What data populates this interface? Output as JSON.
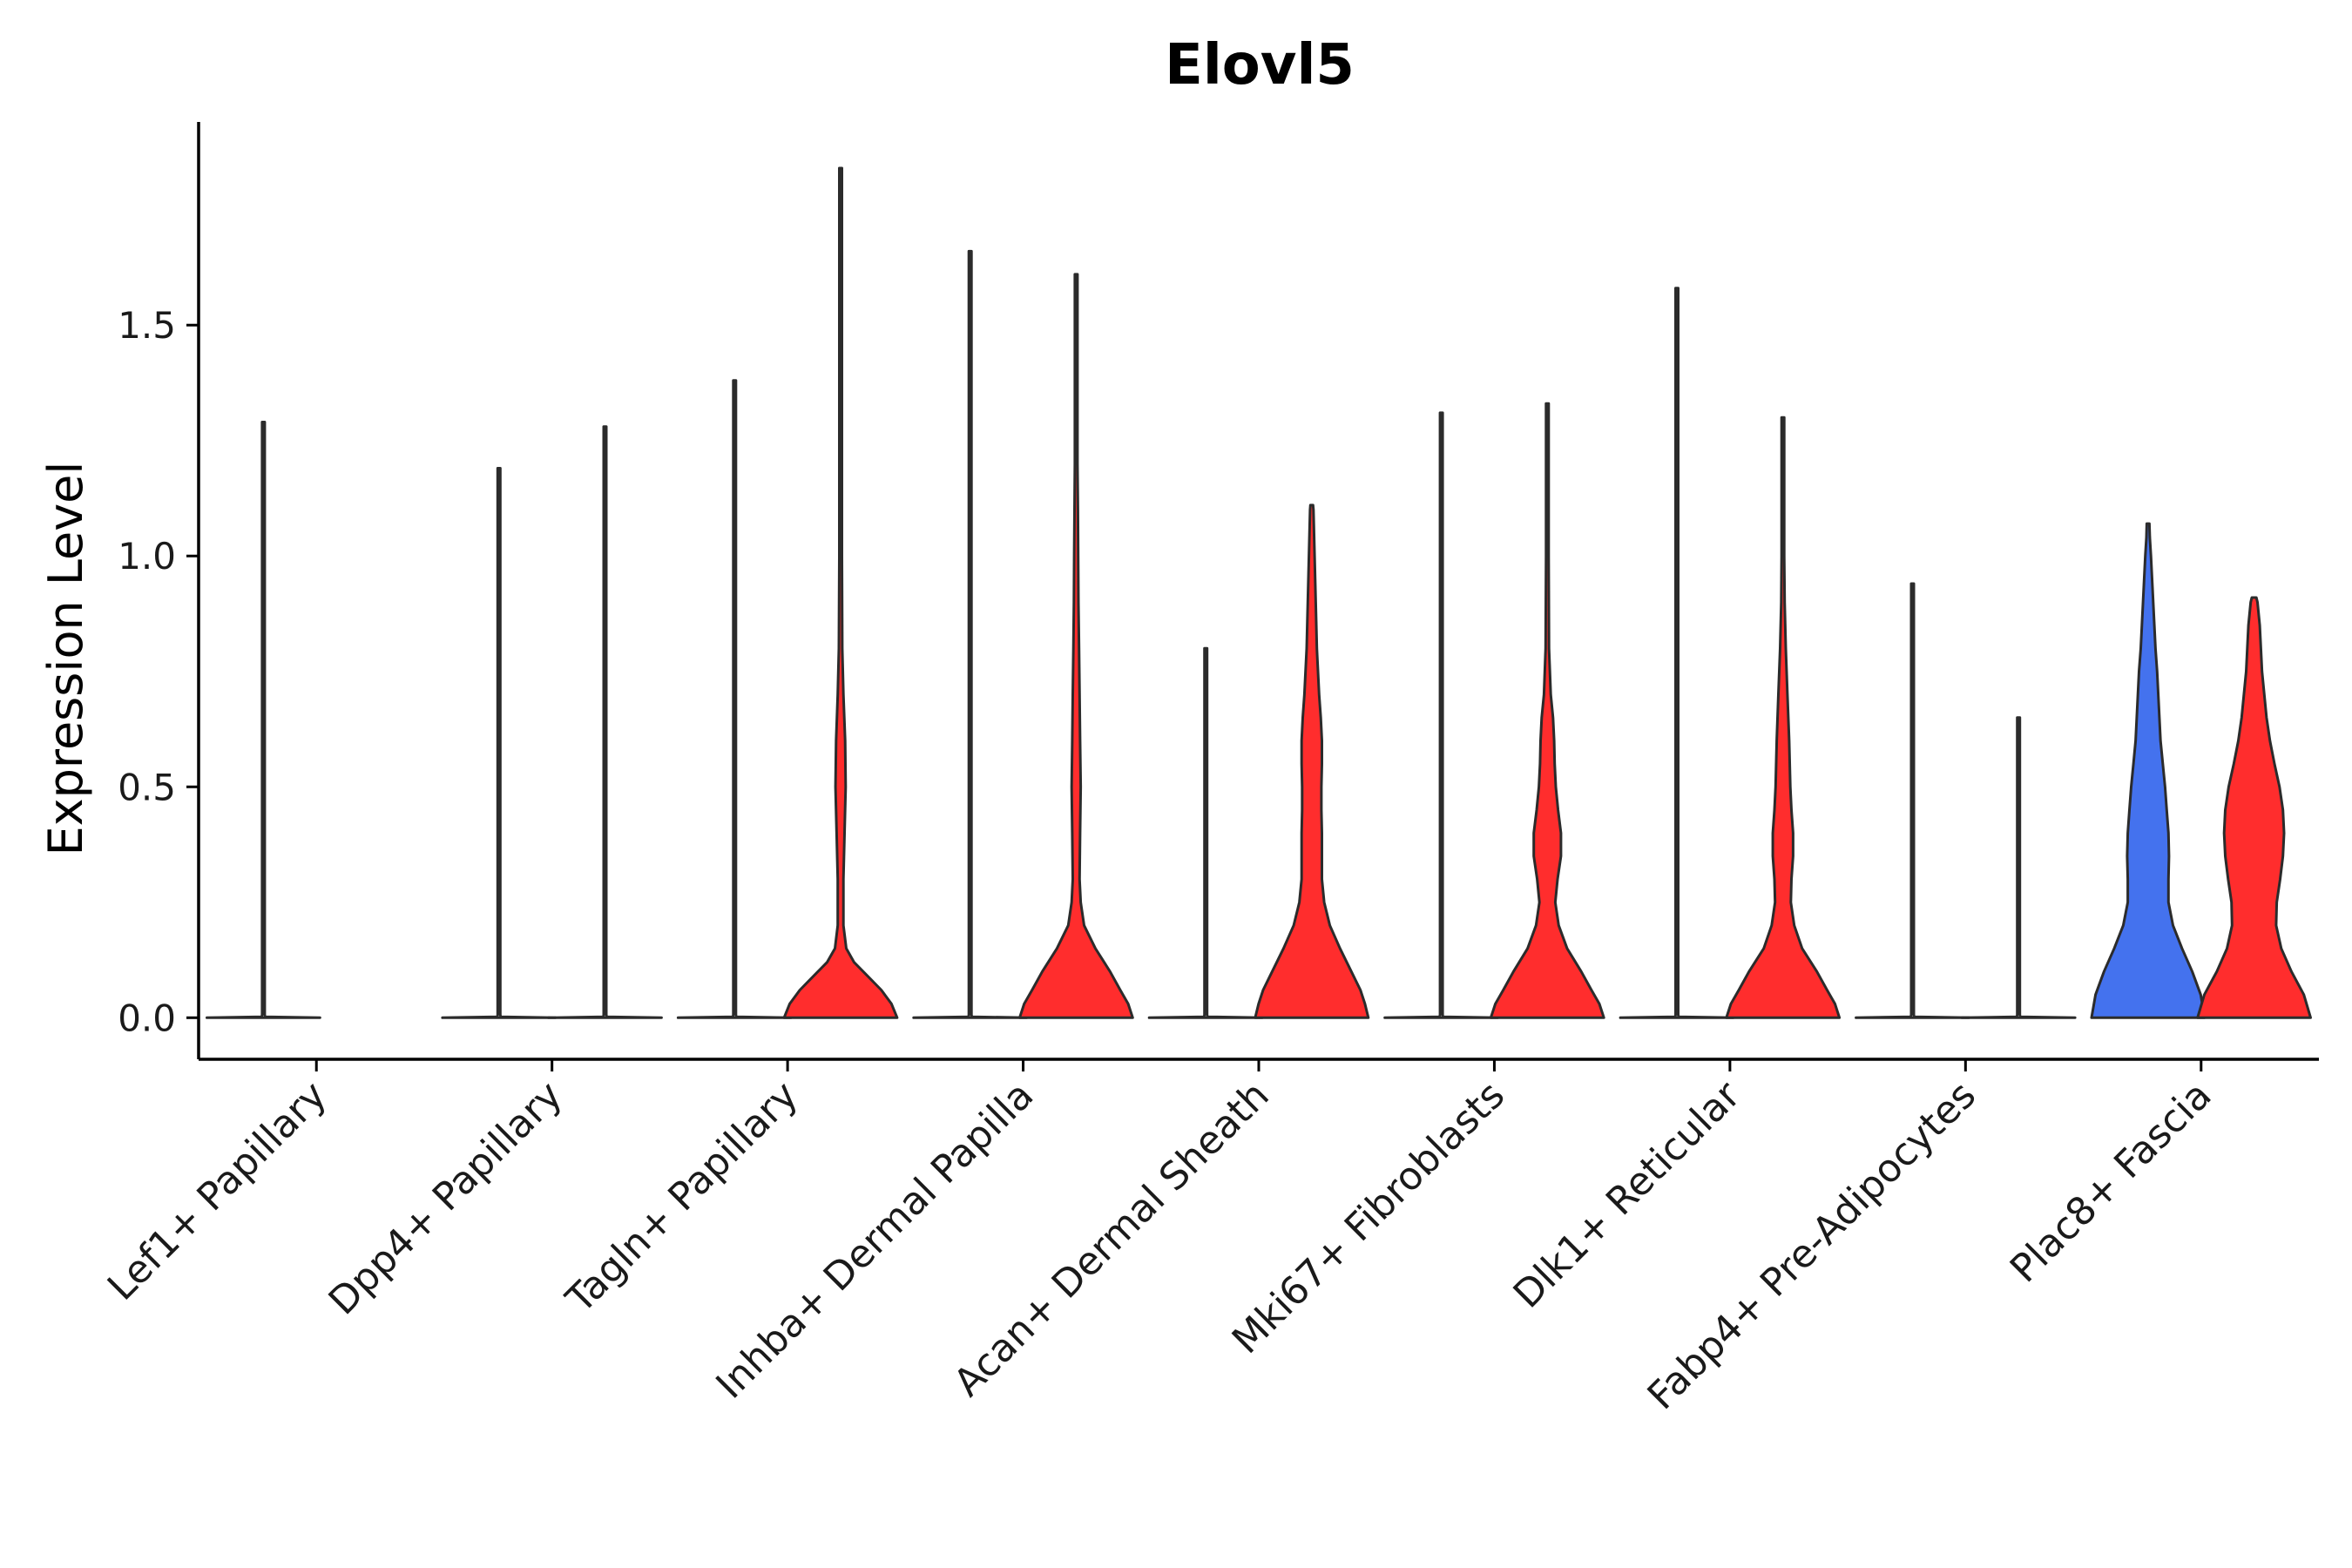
{
  "chart_data": {
    "type": "violin",
    "title": "Elovl5",
    "xlabel": "",
    "ylabel": "Expression Level",
    "ylim": [
      -0.09,
      1.94
    ],
    "yticks": [
      0.0,
      0.5,
      1.0,
      1.5
    ],
    "ytick_labels": [
      "0.0",
      "0.5",
      "1.0",
      "1.5"
    ],
    "grid": false,
    "legend": "none",
    "colors": {
      "blue": "#4472ee",
      "red": "#ff2d2d",
      "outline": "#2b2b2b"
    },
    "categories": [
      "Lef1+ Papillary",
      "Dpp4+ Papillary",
      "Tagln+ Papillary",
      "Inhba+ Dermal Papilla",
      "Acan+ Dermal Sheath",
      "Mki67+ Fibroblasts",
      "Dlk1+ Reticular",
      "Fabp4+ Pre-Adipocytes",
      "Plac8+ Fascia"
    ],
    "series": [
      {
        "name": "left group",
        "violins": [
          {
            "category": "Lef1+ Papillary",
            "max": 1.29,
            "color": "#ffffff",
            "profile": [
              [
                0,
                1.0
              ],
              [
                0.002,
                0.03
              ],
              [
                0.006,
                0.006
              ],
              [
                0.02,
                0.003
              ],
              [
                1.29,
                0.003
              ]
            ]
          },
          {
            "category": "Dpp4+ Papillary",
            "max": 1.19,
            "color": "#ffffff",
            "profile": [
              [
                0,
                1.0
              ],
              [
                0.002,
                0.03
              ],
              [
                0.006,
                0.006
              ],
              [
                0.02,
                0.003
              ],
              [
                1.19,
                0.003
              ]
            ]
          },
          {
            "category": "Tagln+ Papillary",
            "max": 1.38,
            "color": "#ffffff",
            "profile": [
              [
                0,
                1.0
              ],
              [
                0.002,
                0.03
              ],
              [
                0.006,
                0.006
              ],
              [
                0.02,
                0.003
              ],
              [
                1.38,
                0.003
              ]
            ]
          },
          {
            "category": "Inhba+ Dermal Papilla",
            "max": 1.66,
            "color": "#ffffff",
            "profile": [
              [
                0,
                1.0
              ],
              [
                0.002,
                0.03
              ],
              [
                0.006,
                0.006
              ],
              [
                0.02,
                0.003
              ],
              [
                1.66,
                0.003
              ]
            ]
          },
          {
            "category": "Acan+ Dermal Sheath",
            "max": 0.8,
            "color": "#ffffff",
            "profile": [
              [
                0,
                1.0
              ],
              [
                0.002,
                0.03
              ],
              [
                0.006,
                0.006
              ],
              [
                0.02,
                0.003
              ],
              [
                0.8,
                0.003
              ]
            ]
          },
          {
            "category": "Mki67+ Fibroblasts",
            "max": 1.31,
            "color": "#ffffff",
            "profile": [
              [
                0,
                1.0
              ],
              [
                0.002,
                0.03
              ],
              [
                0.006,
                0.006
              ],
              [
                0.02,
                0.003
              ],
              [
                1.31,
                0.003
              ]
            ]
          },
          {
            "category": "Dlk1+ Reticular",
            "max": 1.58,
            "color": "#ffffff",
            "profile": [
              [
                0,
                1.0
              ],
              [
                0.002,
                0.03
              ],
              [
                0.006,
                0.006
              ],
              [
                0.02,
                0.003
              ],
              [
                1.58,
                0.003
              ]
            ]
          },
          {
            "category": "Fabp4+ Pre-Adipocytes",
            "max": 0.94,
            "color": "#ffffff",
            "profile": [
              [
                0,
                1.0
              ],
              [
                0.002,
                0.03
              ],
              [
                0.006,
                0.006
              ],
              [
                0.02,
                0.003
              ],
              [
                0.94,
                0.003
              ]
            ]
          },
          {
            "category": "Plac8+ Fascia",
            "max": 1.07,
            "color": "#4472ee",
            "profile": [
              [
                0,
                1.0
              ],
              [
                0.05,
                0.93
              ],
              [
                0.1,
                0.78
              ],
              [
                0.15,
                0.6
              ],
              [
                0.2,
                0.44
              ],
              [
                0.25,
                0.36
              ],
              [
                0.3,
                0.36
              ],
              [
                0.35,
                0.37
              ],
              [
                0.4,
                0.36
              ],
              [
                0.45,
                0.33
              ],
              [
                0.5,
                0.3
              ],
              [
                0.55,
                0.26
              ],
              [
                0.6,
                0.22
              ],
              [
                0.65,
                0.2
              ],
              [
                0.7,
                0.18
              ],
              [
                0.75,
                0.16
              ],
              [
                0.8,
                0.13
              ],
              [
                0.85,
                0.11
              ],
              [
                0.9,
                0.09
              ],
              [
                0.95,
                0.07
              ],
              [
                1.0,
                0.05
              ],
              [
                1.04,
                0.03
              ],
              [
                1.07,
                0.005
              ]
            ]
          }
        ]
      },
      {
        "name": "right group",
        "violins": [
          {
            "category": "Lef1+ Papillary",
            "max": 0.0,
            "color": "#ffffff",
            "profile": []
          },
          {
            "category": "Dpp4+ Papillary",
            "max": 1.28,
            "color": "#ffffff",
            "profile": [
              [
                0,
                1.0
              ],
              [
                0.002,
                0.03
              ],
              [
                0.006,
                0.006
              ],
              [
                0.02,
                0.003
              ],
              [
                1.28,
                0.003
              ]
            ]
          },
          {
            "category": "Tagln+ Papillary",
            "max": 1.84,
            "color": "#ff2d2d",
            "profile": [
              [
                0,
                1.0
              ],
              [
                0.03,
                0.9
              ],
              [
                0.06,
                0.72
              ],
              [
                0.09,
                0.48
              ],
              [
                0.12,
                0.24
              ],
              [
                0.15,
                0.1
              ],
              [
                0.2,
                0.05
              ],
              [
                0.3,
                0.05
              ],
              [
                0.4,
                0.07
              ],
              [
                0.5,
                0.09
              ],
              [
                0.6,
                0.08
              ],
              [
                0.7,
                0.05
              ],
              [
                0.8,
                0.03
              ],
              [
                1.0,
                0.012
              ],
              [
                1.3,
                0.006
              ],
              [
                1.84,
                0.003
              ]
            ]
          },
          {
            "category": "Inhba+ Dermal Papilla",
            "max": 1.61,
            "color": "#ff2d2d",
            "profile": [
              [
                0,
                1.0
              ],
              [
                0.03,
                0.92
              ],
              [
                0.06,
                0.78
              ],
              [
                0.1,
                0.6
              ],
              [
                0.15,
                0.34
              ],
              [
                0.2,
                0.14
              ],
              [
                0.25,
                0.08
              ],
              [
                0.3,
                0.06
              ],
              [
                0.4,
                0.07
              ],
              [
                0.5,
                0.08
              ],
              [
                0.6,
                0.07
              ],
              [
                0.7,
                0.06
              ],
              [
                0.8,
                0.05
              ],
              [
                0.9,
                0.04
              ],
              [
                1.0,
                0.035
              ],
              [
                1.1,
                0.03
              ],
              [
                1.2,
                0.02
              ],
              [
                1.3,
                0.01
              ],
              [
                1.61,
                0.003
              ]
            ]
          },
          {
            "category": "Acan+ Dermal Sheath",
            "max": 1.11,
            "color": "#ff2d2d",
            "profile": [
              [
                0,
                1.0
              ],
              [
                0.03,
                0.94
              ],
              [
                0.06,
                0.86
              ],
              [
                0.1,
                0.7
              ],
              [
                0.15,
                0.5
              ],
              [
                0.2,
                0.32
              ],
              [
                0.25,
                0.22
              ],
              [
                0.3,
                0.18
              ],
              [
                0.35,
                0.18
              ],
              [
                0.4,
                0.18
              ],
              [
                0.45,
                0.17
              ],
              [
                0.5,
                0.17
              ],
              [
                0.55,
                0.18
              ],
              [
                0.6,
                0.18
              ],
              [
                0.65,
                0.16
              ],
              [
                0.7,
                0.13
              ],
              [
                0.8,
                0.09
              ],
              [
                0.9,
                0.07
              ],
              [
                1.0,
                0.05
              ],
              [
                1.1,
                0.03
              ],
              [
                1.11,
                0.015
              ]
            ]
          },
          {
            "category": "Mki67+ Fibroblasts",
            "max": 1.33,
            "color": "#ff2d2d",
            "profile": [
              [
                0,
                1.0
              ],
              [
                0.03,
                0.92
              ],
              [
                0.06,
                0.78
              ],
              [
                0.1,
                0.6
              ],
              [
                0.15,
                0.35
              ],
              [
                0.2,
                0.2
              ],
              [
                0.25,
                0.14
              ],
              [
                0.3,
                0.18
              ],
              [
                0.35,
                0.24
              ],
              [
                0.4,
                0.24
              ],
              [
                0.45,
                0.19
              ],
              [
                0.5,
                0.15
              ],
              [
                0.55,
                0.13
              ],
              [
                0.6,
                0.12
              ],
              [
                0.65,
                0.1
              ],
              [
                0.7,
                0.06
              ],
              [
                0.8,
                0.03
              ],
              [
                1.0,
                0.012
              ],
              [
                1.33,
                0.004
              ]
            ]
          },
          {
            "category": "Dlk1+ Reticular",
            "max": 1.3,
            "color": "#ff2d2d",
            "profile": [
              [
                0,
                1.0
              ],
              [
                0.03,
                0.92
              ],
              [
                0.06,
                0.78
              ],
              [
                0.1,
                0.6
              ],
              [
                0.15,
                0.34
              ],
              [
                0.2,
                0.2
              ],
              [
                0.25,
                0.14
              ],
              [
                0.3,
                0.15
              ],
              [
                0.35,
                0.18
              ],
              [
                0.4,
                0.18
              ],
              [
                0.45,
                0.15
              ],
              [
                0.5,
                0.13
              ],
              [
                0.6,
                0.11
              ],
              [
                0.7,
                0.08
              ],
              [
                0.8,
                0.05
              ],
              [
                0.9,
                0.03
              ],
              [
                1.0,
                0.02
              ],
              [
                1.3,
                0.004
              ]
            ]
          },
          {
            "category": "Fabp4+ Pre-Adipocytes",
            "max": 0.65,
            "color": "#ffffff",
            "profile": [
              [
                0,
                1.0
              ],
              [
                0.002,
                0.03
              ],
              [
                0.006,
                0.006
              ],
              [
                0.02,
                0.003
              ],
              [
                0.65,
                0.003
              ]
            ]
          },
          {
            "category": "Plac8+ Fascia",
            "max": 0.91,
            "color": "#ff2d2d",
            "profile": [
              [
                0,
                1.0
              ],
              [
                0.05,
                0.88
              ],
              [
                0.1,
                0.66
              ],
              [
                0.15,
                0.48
              ],
              [
                0.2,
                0.39
              ],
              [
                0.25,
                0.4
              ],
              [
                0.3,
                0.46
              ],
              [
                0.35,
                0.51
              ],
              [
                0.4,
                0.53
              ],
              [
                0.45,
                0.51
              ],
              [
                0.5,
                0.45
              ],
              [
                0.55,
                0.36
              ],
              [
                0.6,
                0.28
              ],
              [
                0.65,
                0.22
              ],
              [
                0.7,
                0.18
              ],
              [
                0.75,
                0.14
              ],
              [
                0.8,
                0.12
              ],
              [
                0.85,
                0.1
              ],
              [
                0.9,
                0.06
              ],
              [
                0.91,
                0.04
              ]
            ]
          }
        ]
      }
    ]
  }
}
